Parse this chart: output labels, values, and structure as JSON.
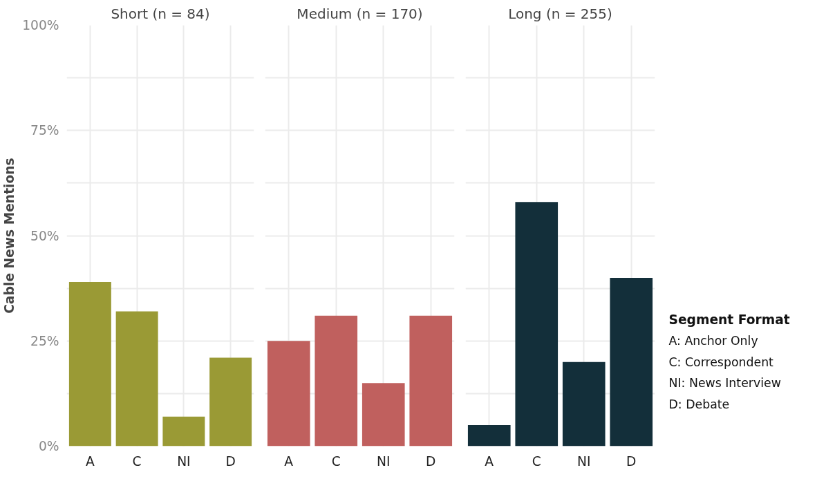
{
  "chart_data": [
    {
      "type": "bar",
      "title": "Short (n = 84)",
      "ylabel": "Cable News Mentions",
      "categories": [
        "A",
        "C",
        "NI",
        "D"
      ],
      "values": [
        39,
        32,
        7,
        21
      ],
      "color": "#9a9a35",
      "ylim": [
        0,
        100
      ],
      "yticks": [
        {
          "value": 0,
          "label": "0%"
        },
        {
          "value": 12.5,
          "label": null
        },
        {
          "value": 25,
          "label": "25%"
        },
        {
          "value": 37.5,
          "label": null
        },
        {
          "value": 50,
          "label": "50%"
        },
        {
          "value": 62.5,
          "label": null
        },
        {
          "value": 75,
          "label": "75%"
        },
        {
          "value": 87.5,
          "label": null
        },
        {
          "value": 100,
          "label": "100%"
        }
      ],
      "grid": true
    },
    {
      "type": "bar",
      "title": "Medium (n = 170)",
      "categories": [
        "A",
        "C",
        "NI",
        "D"
      ],
      "values": [
        25,
        31,
        15,
        31
      ],
      "color": "#c0605e",
      "ylim": [
        0,
        100
      ],
      "yticks": [
        {
          "value": 0,
          "label": null
        },
        {
          "value": 12.5,
          "label": null
        },
        {
          "value": 25,
          "label": null
        },
        {
          "value": 37.5,
          "label": null
        },
        {
          "value": 50,
          "label": null
        },
        {
          "value": 62.5,
          "label": null
        },
        {
          "value": 75,
          "label": null
        },
        {
          "value": 87.5,
          "label": null
        },
        {
          "value": 100,
          "label": null
        }
      ],
      "grid": true,
      "tick_labels": "x"
    },
    {
      "type": "bar",
      "title": "Long (n = 255)",
      "categories": [
        "A",
        "C",
        "NI",
        "D"
      ],
      "values": [
        5,
        58,
        20,
        40
      ],
      "color": "#132f3a",
      "ylim": [
        0,
        100
      ],
      "yticks": [
        {
          "value": 0,
          "label": null
        },
        {
          "value": 12.5,
          "label": null
        },
        {
          "value": 25,
          "label": null
        },
        {
          "value": 37.5,
          "label": null
        },
        {
          "value": 50,
          "label": null
        },
        {
          "value": 62.5,
          "label": null
        },
        {
          "value": 75,
          "label": null
        },
        {
          "value": 87.5,
          "label": null
        },
        {
          "value": 100,
          "label": null
        }
      ],
      "grid": true,
      "tick_labels": "x",
      "annotations": [
        "Segment Format",
        "A:  Anchor Only",
        "C:  Correspondent",
        "NI: News Interview",
        "D:  Debate"
      ]
    }
  ]
}
